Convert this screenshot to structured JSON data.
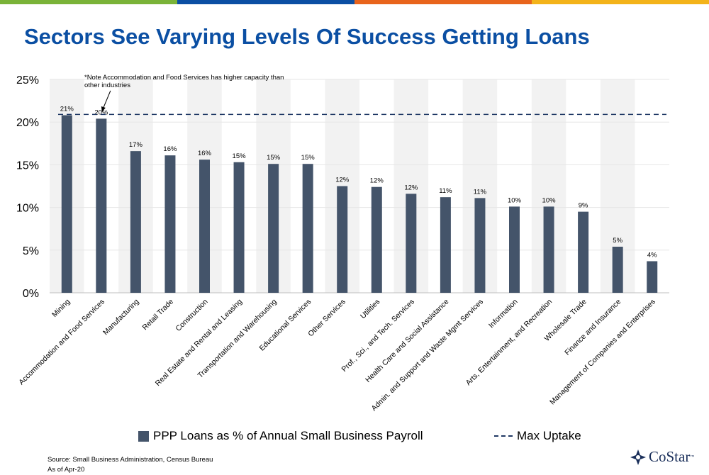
{
  "header": {
    "title": "Sectors See Varying Levels Of Success Getting Loans",
    "stripe_colors": [
      "#7ab338",
      "#0b4fa3",
      "#e8641c",
      "#f3b31a"
    ]
  },
  "note": "*Note Accommodation and Food Services has higher capacity than other industries",
  "chart_data": {
    "type": "bar",
    "categories": [
      "Mining",
      "Accommodation and Food Services",
      "Manufacturing",
      "Retail Trade",
      "Construction",
      "Real Estate and Rental and Leasing",
      "Transportation and Warehousing",
      "Educational Services",
      "Other Services",
      "Utilities",
      "Prof., Sci., and Tech. Services",
      "Health Care and Social Assistance",
      "Admin. and Support and Waste Mgmt Services",
      "Information",
      "Arts, Entertainment, and Recreation",
      "Wholesale Trade",
      "Finance and Insurance",
      "Management of Companies and Enterprises"
    ],
    "series": [
      {
        "name": "PPP Loans as % of Annual Small Business Payroll",
        "color": "#44546a",
        "values": [
          20.8,
          20.4,
          16.6,
          16.1,
          15.6,
          15.3,
          15.1,
          15.1,
          12.5,
          12.4,
          11.6,
          11.2,
          11.1,
          10.1,
          10.1,
          9.5,
          5.4,
          3.7
        ],
        "data_labels": [
          "21%",
          "20%",
          "17%",
          "16%",
          "16%",
          "15%",
          "15%",
          "15%",
          "12%",
          "12%",
          "12%",
          "11%",
          "11%",
          "10%",
          "10%",
          "9%",
          "5%",
          "4%"
        ]
      },
      {
        "name": "Max Uptake",
        "type": "line",
        "style": "dashed",
        "color": "#1f3864",
        "value": 20.9
      }
    ],
    "ylim": [
      0,
      25
    ],
    "yticks": [
      0,
      5,
      10,
      15,
      20,
      25
    ],
    "ytick_labels": [
      "0%",
      "5%",
      "10%",
      "15%",
      "20%",
      "25%"
    ],
    "xlabel": "",
    "ylabel": "",
    "grid": true,
    "alternating_band_color": "#f2f2f2",
    "legend": "bottom"
  },
  "footer": {
    "source": "Source: Small Business Administration, Census Bureau",
    "as_of": "As of Apr-20"
  },
  "logo": {
    "text": "CoStar",
    "mark": "™"
  }
}
